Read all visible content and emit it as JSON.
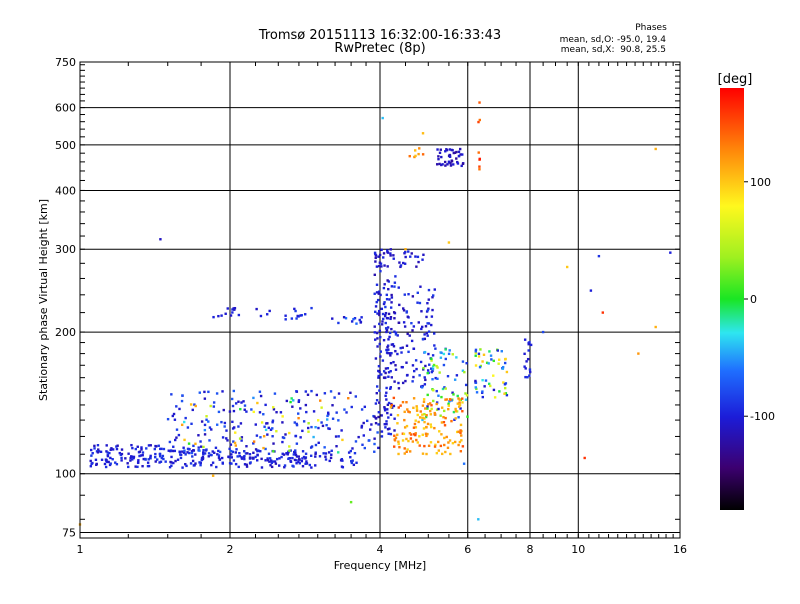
{
  "chart_data": {
    "type": "scatter",
    "title": "Tromsø 20151113 16:32:00-16:33:43",
    "subtitle": "RwPretec (8p)",
    "xlabel": "Frequency [MHz]",
    "ylabel": "Stationary phase Virtual Height [km]",
    "x_scale": "log",
    "y_scale": "log",
    "xlim": [
      1,
      16
    ],
    "ylim": [
      73,
      750
    ],
    "x_ticks": [
      1,
      2,
      4,
      6,
      8,
      10,
      16
    ],
    "y_ticks": [
      75,
      100,
      200,
      300,
      400,
      500,
      600,
      750
    ],
    "grid": true,
    "stats": {
      "header": "Phases",
      "line1": "mean, sd,O: -95.0, 19.4",
      "line2": "mean, sd,X:  90.8, 25.5"
    },
    "colorbar": {
      "label": "[deg]",
      "range": [
        -180,
        180
      ],
      "ticks": [
        100,
        0,
        -100
      ]
    },
    "point_groups": [
      {
        "name": "low-band",
        "x": [
          1.05,
          1.8
        ],
        "y": [
          103,
          115
        ],
        "phase": [
          -115,
          -85
        ],
        "count": 170
      },
      {
        "name": "low-band-mid",
        "x": [
          1.8,
          3.6
        ],
        "y": [
          103,
          112
        ],
        "phase": [
          -115,
          -85
        ],
        "count": 150
      },
      {
        "name": "scatter-mid",
        "x": [
          1.5,
          4.0
        ],
        "y": [
          110,
          150
        ],
        "phase": [
          -115,
          -70
        ],
        "count": 190
      },
      {
        "name": "scatter-mixed",
        "x": [
          1.6,
          3.6
        ],
        "y": [
          110,
          145
        ],
        "phase": [
          -100,
          140
        ],
        "count": 55
      },
      {
        "name": "vertical-4mhz",
        "x": [
          3.9,
          4.3
        ],
        "y": [
          120,
          300
        ],
        "phase": [
          -120,
          -90
        ],
        "count": 150
      },
      {
        "name": "blob-4.5",
        "x": [
          4.1,
          5.2
        ],
        "y": [
          150,
          250
        ],
        "phase": [
          -120,
          -80
        ],
        "count": 120
      },
      {
        "name": "blob-5.5",
        "x": [
          4.8,
          6.0
        ],
        "y": [
          130,
          185
        ],
        "phase": [
          -110,
          60
        ],
        "count": 80
      },
      {
        "name": "x-mode-band",
        "x": [
          4.2,
          5.9
        ],
        "y": [
          110,
          145
        ],
        "phase": [
          90,
          150
        ],
        "count": 150
      },
      {
        "name": "right-arm",
        "x": [
          6.2,
          7.2
        ],
        "y": [
          145,
          185
        ],
        "phase": [
          -110,
          110
        ],
        "count": 55
      },
      {
        "name": "right-cusp",
        "x": [
          7.8,
          8.1
        ],
        "y": [
          160,
          200
        ],
        "phase": [
          -110,
          -90
        ],
        "count": 16
      },
      {
        "name": "upper-cluster",
        "x": [
          5.2,
          5.9
        ],
        "y": [
          450,
          490
        ],
        "phase": [
          -130,
          -100
        ],
        "count": 45
      },
      {
        "name": "upper-orange",
        "x": [
          4.5,
          4.9
        ],
        "y": [
          470,
          530
        ],
        "phase": [
          95,
          140
        ],
        "count": 8
      },
      {
        "name": "ledge-1.9",
        "x": [
          1.85,
          2.45
        ],
        "y": [
          215,
          225
        ],
        "phase": [
          -110,
          -90
        ],
        "count": 16
      },
      {
        "name": "ledge-2.6",
        "x": [
          2.55,
          3.0
        ],
        "y": [
          210,
          225
        ],
        "phase": [
          -110,
          -80
        ],
        "count": 12
      },
      {
        "name": "ledge-3.3",
        "x": [
          3.2,
          3.7
        ],
        "y": [
          208,
          216
        ],
        "phase": [
          -110,
          -60
        ],
        "count": 12
      },
      {
        "name": "ledge-4.1",
        "x": [
          4.0,
          4.9
        ],
        "y": [
          270,
          300
        ],
        "phase": [
          -120,
          -90
        ],
        "count": 22
      },
      {
        "name": "column-6.3",
        "x": [
          6.3,
          6.35
        ],
        "y": [
          440,
          620
        ],
        "phase": [
          130,
          170
        ],
        "count": 8
      }
    ],
    "isolated_points": [
      {
        "x": 1.45,
        "y": 315,
        "phase": -110
      },
      {
        "x": 4.05,
        "y": 570,
        "phase": -40
      },
      {
        "x": 4.5,
        "y": 300,
        "phase": 110
      },
      {
        "x": 6.3,
        "y": 80,
        "phase": -40
      },
      {
        "x": 5.5,
        "y": 310,
        "phase": 100
      },
      {
        "x": 8.5,
        "y": 200,
        "phase": -80
      },
      {
        "x": 10.3,
        "y": 108,
        "phase": 160
      },
      {
        "x": 10.6,
        "y": 245,
        "phase": -100
      },
      {
        "x": 11.0,
        "y": 290,
        "phase": -90
      },
      {
        "x": 11.2,
        "y": 220,
        "phase": 160
      },
      {
        "x": 13.2,
        "y": 180,
        "phase": 120
      },
      {
        "x": 14.3,
        "y": 490,
        "phase": 110
      },
      {
        "x": 14.3,
        "y": 205,
        "phase": 110
      },
      {
        "x": 15.3,
        "y": 295,
        "phase": -100
      },
      {
        "x": 1.0,
        "y": 78,
        "phase": 110
      },
      {
        "x": 3.5,
        "y": 87,
        "phase": 20
      },
      {
        "x": 1.85,
        "y": 99,
        "phase": 110
      },
      {
        "x": 5.9,
        "y": 105,
        "phase": -60
      },
      {
        "x": 9.5,
        "y": 275,
        "phase": 100
      }
    ]
  }
}
